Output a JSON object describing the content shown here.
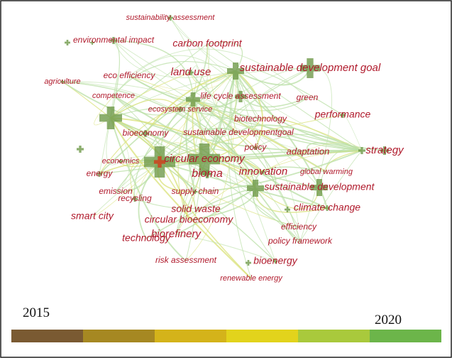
{
  "nodes": [
    {
      "label": "sustainability assessment"
    },
    {
      "label": "environmental impact"
    },
    {
      "label": "carbon footprint"
    },
    {
      "label": "sustainable development goal"
    },
    {
      "label": "agriculture"
    },
    {
      "label": "eco efficiency"
    },
    {
      "label": "land use"
    },
    {
      "label": "competence"
    },
    {
      "label": "life cycle assessment"
    },
    {
      "label": "green"
    },
    {
      "label": "ecosystem service"
    },
    {
      "label": "performance"
    },
    {
      "label": "biotechnology"
    },
    {
      "label": "bioeconomy"
    },
    {
      "label": "sustainable developmentgoal"
    },
    {
      "label": "policy"
    },
    {
      "label": "adaptation"
    },
    {
      "label": "strategy"
    },
    {
      "label": "economics"
    },
    {
      "label": "circular economy"
    },
    {
      "label": "energy"
    },
    {
      "label": "bioma"
    },
    {
      "label": "innovation"
    },
    {
      "label": "global warming"
    },
    {
      "label": "emission"
    },
    {
      "label": "supply chain"
    },
    {
      "label": "sustainable development"
    },
    {
      "label": "recycling"
    },
    {
      "label": "solid waste"
    },
    {
      "label": "climate change"
    },
    {
      "label": "smart city"
    },
    {
      "label": "circular bioeconomy"
    },
    {
      "label": "efficiency"
    },
    {
      "label": "technology"
    },
    {
      "label": "biorefinery"
    },
    {
      "label": "policy framework"
    },
    {
      "label": "risk assessment"
    },
    {
      "label": "bioenergy"
    },
    {
      "label": "renewable energy"
    }
  ],
  "timeline": {
    "start": "2015",
    "end": "2020"
  }
}
